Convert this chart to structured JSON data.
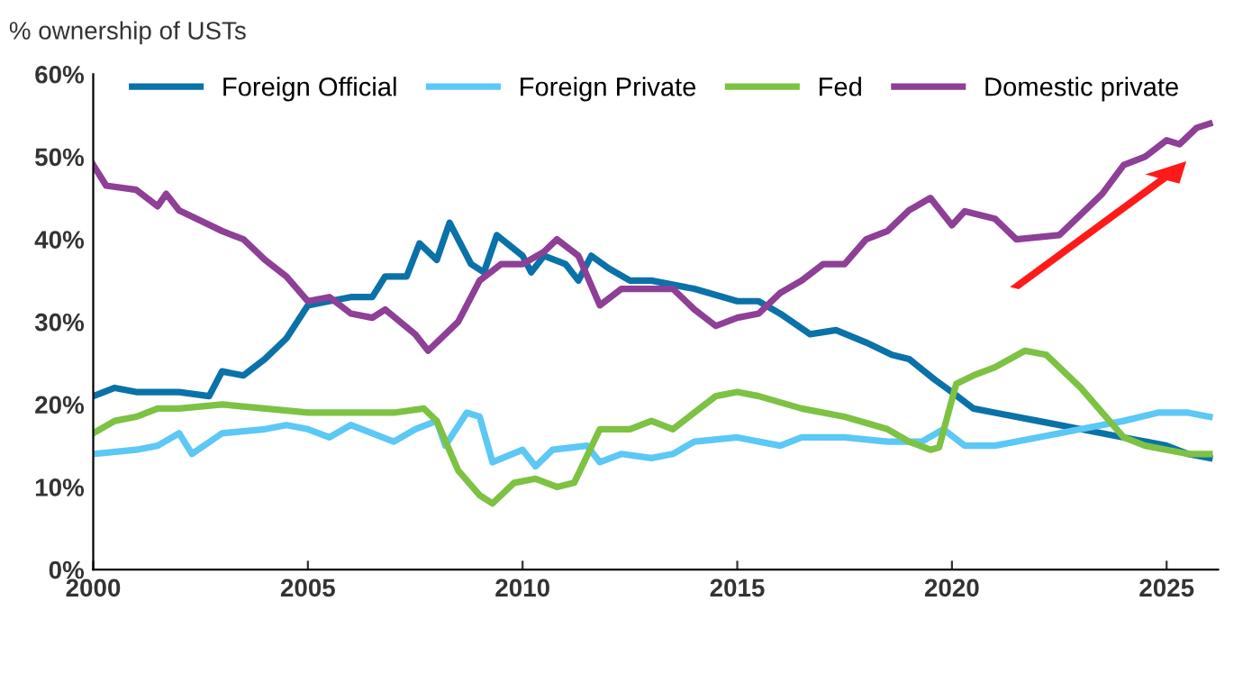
{
  "chart_data": {
    "type": "line",
    "ylabel": "% ownership of USTs",
    "xlim": [
      2000,
      2026.2
    ],
    "ylim": [
      0,
      60
    ],
    "xticks": [
      2000,
      2005,
      2010,
      2015,
      2020,
      2025
    ],
    "yticks": [
      {
        "value": 0,
        "label": "0%"
      },
      {
        "value": 10,
        "label": "10%"
      },
      {
        "value": 20,
        "label": "20%"
      },
      {
        "value": 30,
        "label": "30%"
      },
      {
        "value": 40,
        "label": "40%"
      },
      {
        "value": 50,
        "label": "50%"
      },
      {
        "value": 60,
        "label": "60%"
      }
    ],
    "grid": false,
    "legend": "top",
    "marker": "none",
    "line_style": "solid",
    "series": [
      {
        "name": "Foreign Official",
        "color": "#0a72a8",
        "x": [
          2000,
          2000.5,
          2001,
          2002,
          2002.7,
          2003,
          2003.5,
          2004,
          2004.5,
          2005,
          2005.5,
          2006,
          2006.5,
          2006.8,
          2007.3,
          2007.6,
          2008,
          2008.3,
          2008.8,
          2009.1,
          2009.4,
          2010,
          2010.2,
          2010.5,
          2011,
          2011.3,
          2011.6,
          2012,
          2012.5,
          2013,
          2014,
          2015,
          2015.5,
          2016,
          2016.7,
          2017.3,
          2018,
          2018.6,
          2019,
          2019.6,
          2020,
          2020.5,
          2021,
          2022,
          2023,
          2024,
          2025,
          2025.5,
          2026
        ],
        "values": [
          21,
          22,
          21.5,
          21.5,
          21,
          24,
          23.5,
          25.5,
          28,
          32,
          32.5,
          33,
          33,
          35.5,
          35.5,
          39.5,
          37.5,
          42,
          37,
          36,
          40.5,
          38,
          36,
          38,
          37,
          35,
          38,
          36.5,
          35,
          35,
          34,
          32.5,
          32.5,
          31,
          28.5,
          29,
          27.5,
          26,
          25.5,
          23,
          21.5,
          19.5,
          19,
          18,
          17,
          16,
          15,
          14,
          13.5
        ]
      },
      {
        "name": "Foreign Private",
        "color": "#5bc8f5",
        "x": [
          2000,
          2001,
          2001.5,
          2002,
          2002.3,
          2003,
          2004,
          2004.5,
          2005,
          2005.5,
          2006,
          2007,
          2007.5,
          2008,
          2008.2,
          2008.7,
          2009,
          2009.3,
          2010,
          2010.3,
          2010.7,
          2011.5,
          2011.8,
          2012.3,
          2013,
          2013.5,
          2014,
          2015,
          2016,
          2016.5,
          2017.5,
          2018.5,
          2019.3,
          2019.8,
          2020.3,
          2021,
          2022,
          2023,
          2024,
          2024.8,
          2025.5,
          2026
        ],
        "values": [
          14,
          14.5,
          15,
          16.5,
          14,
          16.5,
          17,
          17.5,
          17,
          16,
          17.5,
          15.5,
          17,
          18,
          15,
          19,
          18.5,
          13,
          14.5,
          12.5,
          14.5,
          15,
          13,
          14,
          13.5,
          14,
          15.5,
          16,
          15,
          16,
          16,
          15.5,
          15.5,
          17,
          15,
          15,
          16,
          17,
          18,
          19,
          19,
          18.5
        ]
      },
      {
        "name": "Fed",
        "color": "#7dc243",
        "x": [
          2000,
          2000.5,
          2001,
          2001.5,
          2002,
          2003,
          2004,
          2005,
          2006,
          2007,
          2007.7,
          2008,
          2008.5,
          2009,
          2009.3,
          2009.8,
          2010.3,
          2010.8,
          2011.2,
          2011.8,
          2012.5,
          2013,
          2013.5,
          2014,
          2014.5,
          2015,
          2015.5,
          2016.5,
          2017.5,
          2018.5,
          2019,
          2019.5,
          2019.7,
          2020.1,
          2020.5,
          2021,
          2021.7,
          2022.2,
          2023,
          2023.5,
          2024,
          2024.5,
          2025,
          2025.5,
          2026
        ],
        "values": [
          16.5,
          18,
          18.5,
          19.5,
          19.5,
          20,
          19.5,
          19,
          19,
          19,
          19.5,
          18,
          12,
          9,
          8,
          10.5,
          11,
          10,
          10.5,
          17,
          17,
          18,
          17,
          19,
          21,
          21.5,
          21,
          19.5,
          18.5,
          17,
          15.5,
          14.5,
          14.8,
          22.5,
          23.5,
          24.5,
          26.5,
          26,
          22,
          19,
          16,
          15,
          14.5,
          14,
          14
        ]
      },
      {
        "name": "Domestic private",
        "color": "#8e3f96",
        "x": [
          2000,
          2000.3,
          2001,
          2001.5,
          2001.7,
          2002,
          2003,
          2003.5,
          2004,
          2004.5,
          2005,
          2005.5,
          2006,
          2006.5,
          2006.8,
          2007.5,
          2007.8,
          2008.5,
          2009,
          2009.5,
          2010,
          2010.5,
          2010.8,
          2011.3,
          2011.8,
          2012.3,
          2013,
          2013.5,
          2014,
          2014.5,
          2015,
          2015.5,
          2016,
          2016.5,
          2017,
          2017.5,
          2018,
          2018.5,
          2019,
          2019.5,
          2020,
          2020.3,
          2021,
          2021.5,
          2022.5,
          2023,
          2023.5,
          2024,
          2024.5,
          2025,
          2025.3,
          2025.7,
          2026
        ],
        "values": [
          49,
          46.5,
          46,
          44,
          45.5,
          43.5,
          41,
          40,
          37.5,
          35.5,
          32.5,
          33,
          31,
          30.5,
          31.5,
          28.5,
          26.5,
          30,
          35,
          37,
          37,
          38.5,
          40,
          38,
          32,
          34,
          34,
          34,
          31.5,
          29.5,
          30.5,
          31,
          33.5,
          35,
          37,
          37,
          40,
          41,
          43.5,
          45,
          41.7,
          43.4,
          42.5,
          40,
          40.5,
          43,
          45.5,
          49,
          50,
          52,
          51.5,
          53.5,
          54
        ]
      }
    ]
  }
}
